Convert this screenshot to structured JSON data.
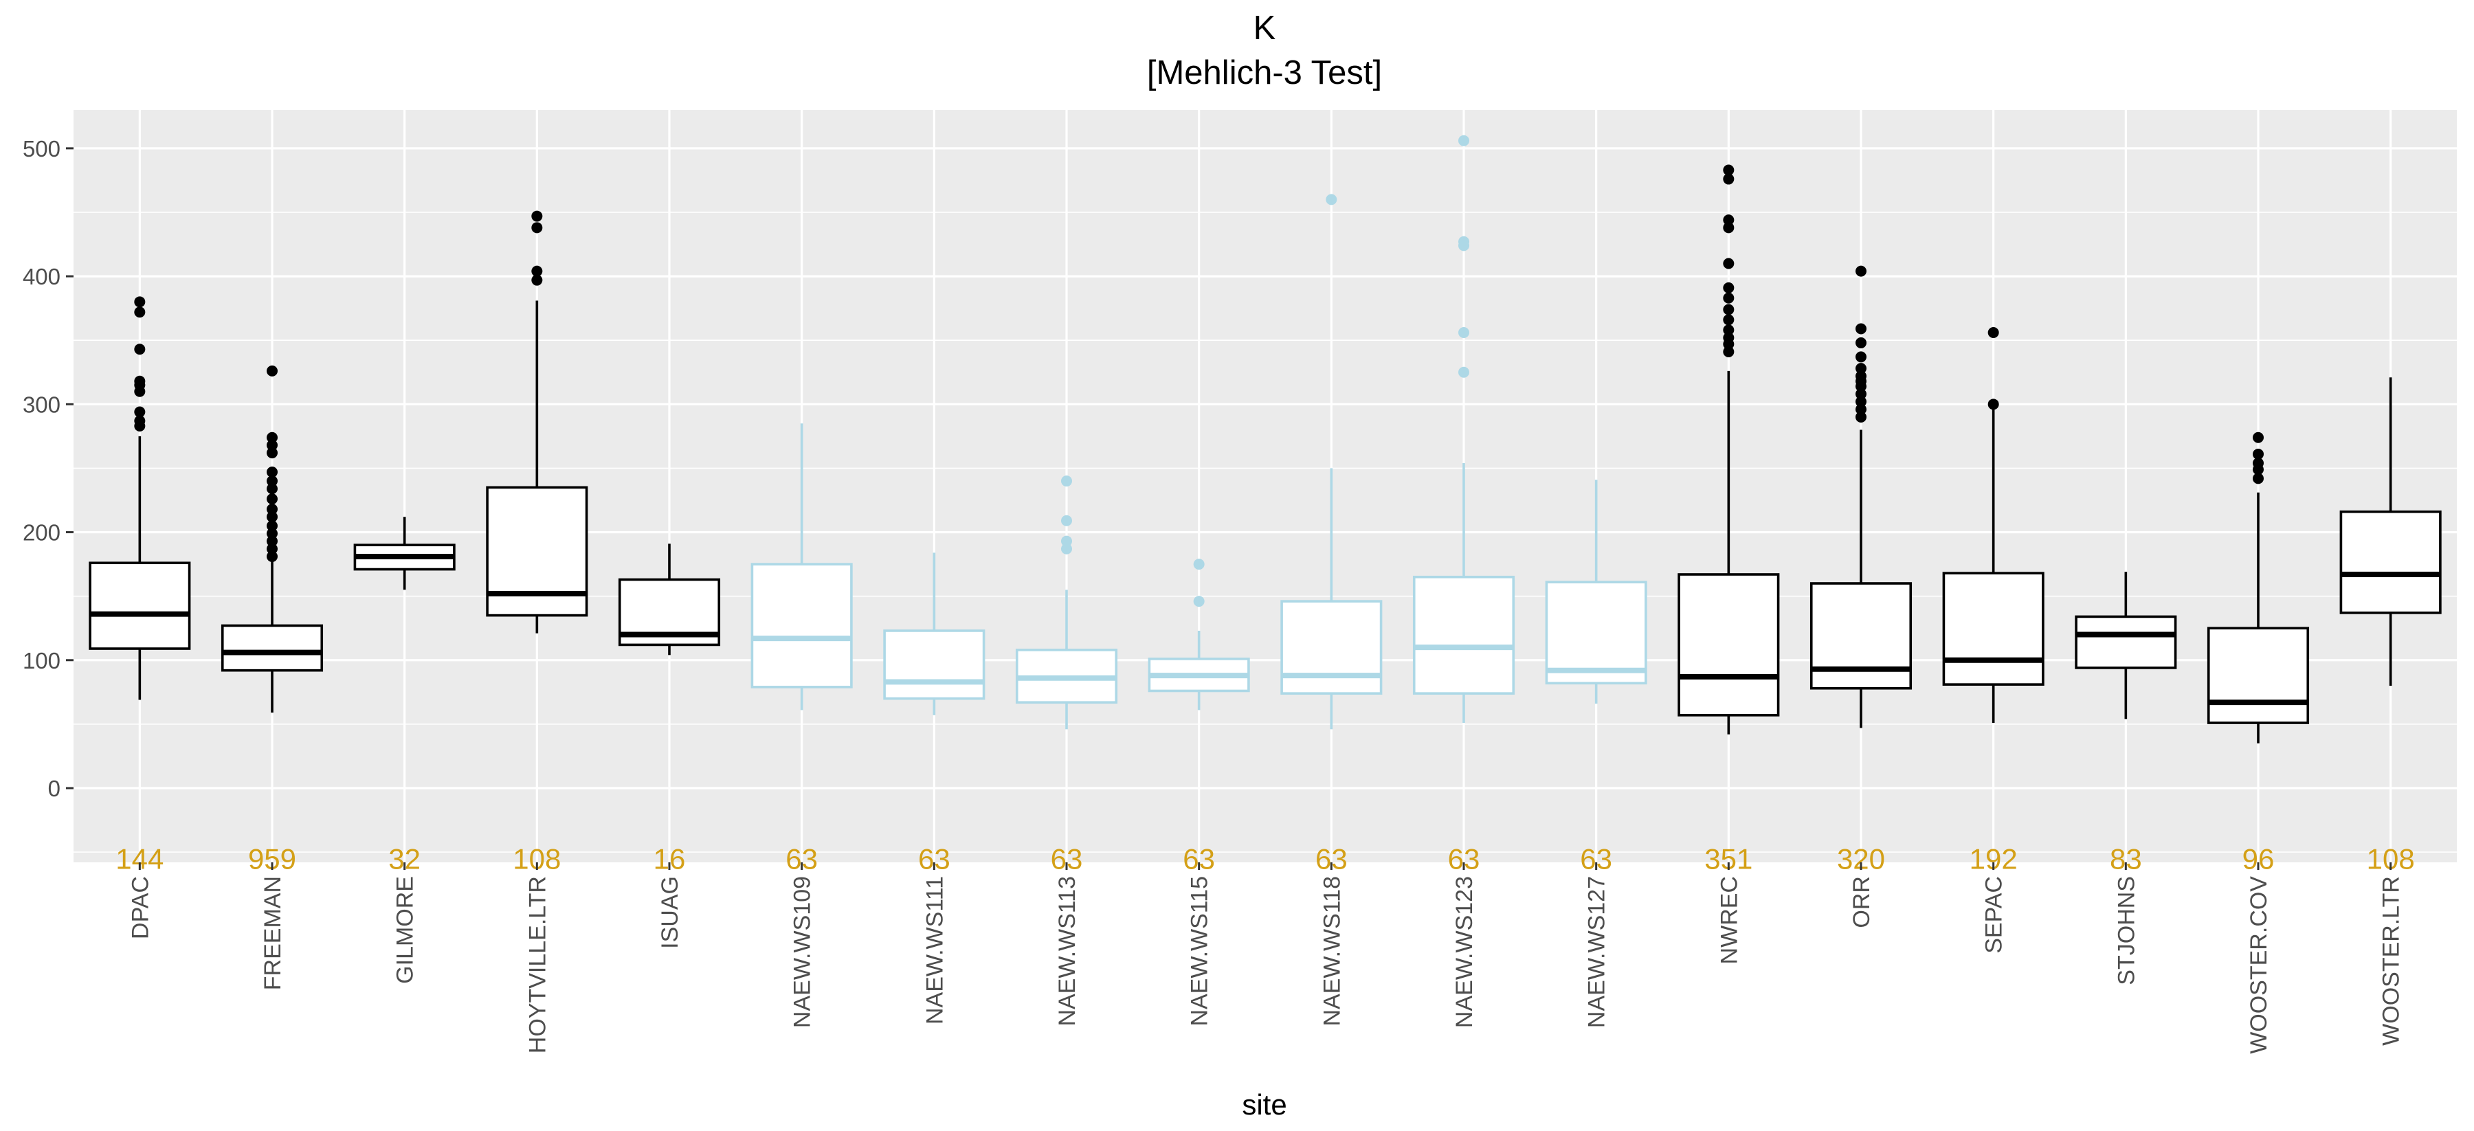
{
  "chart_data": {
    "type": "box",
    "title": "K",
    "subtitle": "[Mehlich-3 Test]",
    "xlabel": "site",
    "ylabel": "",
    "ylim": [
      -58,
      530
    ],
    "yticks": [
      0,
      100,
      200,
      300,
      400,
      500
    ],
    "grid": true,
    "legend": "none",
    "colors": {
      "panel": "#EBEBEB",
      "grid": "#FFFFFF",
      "highlight": "#ADD8E6",
      "default": "#000000",
      "count": "#D4A017",
      "text": "#4D4D4D"
    },
    "sites": [
      {
        "name": "DPAC",
        "n": "144",
        "color": "#000000",
        "min": 69,
        "q1": 109,
        "median": 136,
        "q3": 176,
        "max": 275,
        "outliers": [
          283,
          287,
          294,
          310,
          315,
          318,
          343,
          372,
          380
        ]
      },
      {
        "name": "FREEMAN",
        "n": "959",
        "color": "#000000",
        "min": 59,
        "q1": 92,
        "median": 106,
        "q3": 127,
        "max": 177,
        "outliers": [
          181,
          187,
          193,
          199,
          205,
          212,
          218,
          226,
          234,
          240,
          247,
          262,
          268,
          274,
          326
        ]
      },
      {
        "name": "GILMORE",
        "n": "32",
        "color": "#000000",
        "min": 155,
        "q1": 171,
        "median": 181,
        "q3": 190,
        "max": 212,
        "outliers": []
      },
      {
        "name": "HOYTVILLE.LTR",
        "n": "108",
        "color": "#000000",
        "min": 121,
        "q1": 135,
        "median": 152,
        "q3": 235,
        "max": 381,
        "outliers": [
          397,
          404,
          438,
          447
        ]
      },
      {
        "name": "ISUAG",
        "n": "16",
        "color": "#000000",
        "min": 104,
        "q1": 112,
        "median": 120,
        "q3": 163,
        "max": 191,
        "outliers": []
      },
      {
        "name": "NAEW.WS109",
        "n": "63",
        "color": "#ADD8E6",
        "min": 61,
        "q1": 79,
        "median": 117,
        "q3": 175,
        "max": 285,
        "outliers": []
      },
      {
        "name": "NAEW.WS111",
        "n": "63",
        "color": "#ADD8E6",
        "min": 57,
        "q1": 70,
        "median": 83,
        "q3": 123,
        "max": 184,
        "outliers": []
      },
      {
        "name": "NAEW.WS113",
        "n": "63",
        "color": "#ADD8E6",
        "min": 46,
        "q1": 67,
        "median": 86,
        "q3": 108,
        "max": 155,
        "outliers": [
          187,
          193,
          209,
          240
        ]
      },
      {
        "name": "NAEW.WS115",
        "n": "63",
        "color": "#ADD8E6",
        "min": 61,
        "q1": 76,
        "median": 88,
        "q3": 101,
        "max": 123,
        "outliers": [
          146,
          175
        ]
      },
      {
        "name": "NAEW.WS118",
        "n": "63",
        "color": "#ADD8E6",
        "min": 46,
        "q1": 74,
        "median": 88,
        "q3": 146,
        "max": 250,
        "outliers": [
          460
        ]
      },
      {
        "name": "NAEW.WS123",
        "n": "63",
        "color": "#ADD8E6",
        "min": 51,
        "q1": 74,
        "median": 110,
        "q3": 165,
        "max": 254,
        "outliers": [
          325,
          356,
          424,
          427,
          506
        ]
      },
      {
        "name": "NAEW.WS127",
        "n": "63",
        "color": "#ADD8E6",
        "min": 66,
        "q1": 82,
        "median": 92,
        "q3": 161,
        "max": 241,
        "outliers": []
      },
      {
        "name": "NWREC",
        "n": "351",
        "color": "#000000",
        "min": 42,
        "q1": 57,
        "median": 87,
        "q3": 167,
        "max": 326,
        "outliers": [
          341,
          347,
          352,
          358,
          366,
          374,
          383,
          391,
          410,
          438,
          444,
          476,
          483
        ]
      },
      {
        "name": "ORR",
        "n": "320",
        "color": "#000000",
        "min": 47,
        "q1": 78,
        "median": 93,
        "q3": 160,
        "max": 280,
        "outliers": [
          290,
          296,
          302,
          308,
          314,
          318,
          322,
          328,
          337,
          348,
          359,
          404
        ]
      },
      {
        "name": "SEPAC",
        "n": "192",
        "color": "#000000",
        "min": 51,
        "q1": 81,
        "median": 100,
        "q3": 168,
        "max": 300,
        "outliers": [
          300,
          356
        ]
      },
      {
        "name": "STJOHNS",
        "n": "83",
        "color": "#000000",
        "min": 54,
        "q1": 94,
        "median": 120,
        "q3": 134,
        "max": 169,
        "outliers": []
      },
      {
        "name": "WOOSTER.COV",
        "n": "96",
        "color": "#000000",
        "min": 35,
        "q1": 51,
        "median": 67,
        "q3": 125,
        "max": 231,
        "outliers": [
          242,
          249,
          254,
          261,
          274
        ]
      },
      {
        "name": "WOOSTER.LTR",
        "n": "108",
        "color": "#000000",
        "min": 80,
        "q1": 137,
        "median": 167,
        "q3": 216,
        "max": 321,
        "outliers": []
      }
    ]
  }
}
